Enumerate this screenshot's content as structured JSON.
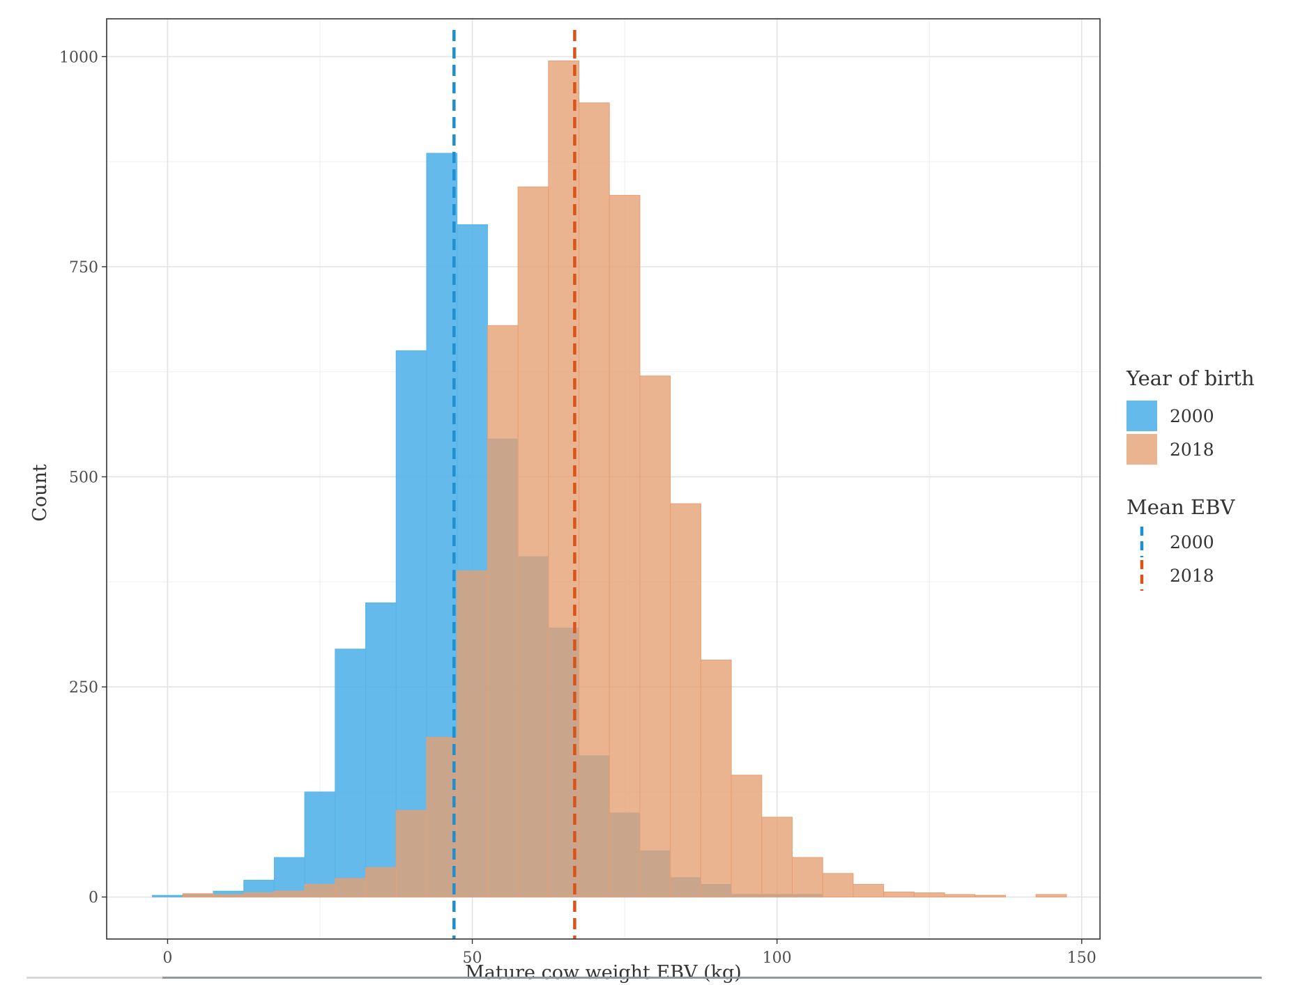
{
  "chart_data": {
    "type": "bar",
    "subtype": "overlapping-histogram",
    "title": "",
    "xlabel": "Mature cow weight EBV (kg)",
    "ylabel": "Count",
    "xlim": [
      -10,
      153
    ],
    "ylim": [
      -50,
      1045
    ],
    "xticks": [
      0,
      50,
      100,
      150
    ],
    "yticks": [
      0,
      250,
      500,
      750,
      1000
    ],
    "grid": true,
    "bin_width": 5,
    "bin_centers": [
      0,
      5,
      10,
      15,
      20,
      25,
      30,
      35,
      40,
      45,
      50,
      55,
      60,
      65,
      70,
      75,
      80,
      85,
      90,
      95,
      100,
      105,
      110,
      115,
      120,
      125,
      130,
      135,
      140,
      145
    ],
    "series": [
      {
        "name": "2000",
        "color": "#56B4E9",
        "values": [
          2,
          3,
          7,
          20,
          47,
          125,
          295,
          350,
          650,
          885,
          800,
          545,
          405,
          320,
          168,
          100,
          55,
          23,
          15,
          3,
          3,
          3,
          0,
          0,
          0,
          0,
          0,
          0,
          0,
          0
        ]
      },
      {
        "name": "2018",
        "color": "#E69F71",
        "values": [
          0,
          4,
          3,
          5,
          7,
          15,
          22,
          35,
          103,
          190,
          388,
          680,
          845,
          995,
          945,
          835,
          620,
          468,
          282,
          145,
          95,
          47,
          28,
          15,
          6,
          5,
          3,
          2,
          0,
          3
        ]
      }
    ],
    "mean_lines": [
      {
        "name": "2000",
        "x": 47,
        "color": "#1f8fd0"
      },
      {
        "name": "2018",
        "x": 66.8,
        "color": "#d9541a"
      }
    ],
    "legend": {
      "placement": "right",
      "fill_title": "Year of birth",
      "fill_items": [
        "2000",
        "2018"
      ],
      "line_title": "Mean EBV",
      "line_items": [
        "2000",
        "2018"
      ]
    },
    "overlap_color": "#aa7b66"
  }
}
